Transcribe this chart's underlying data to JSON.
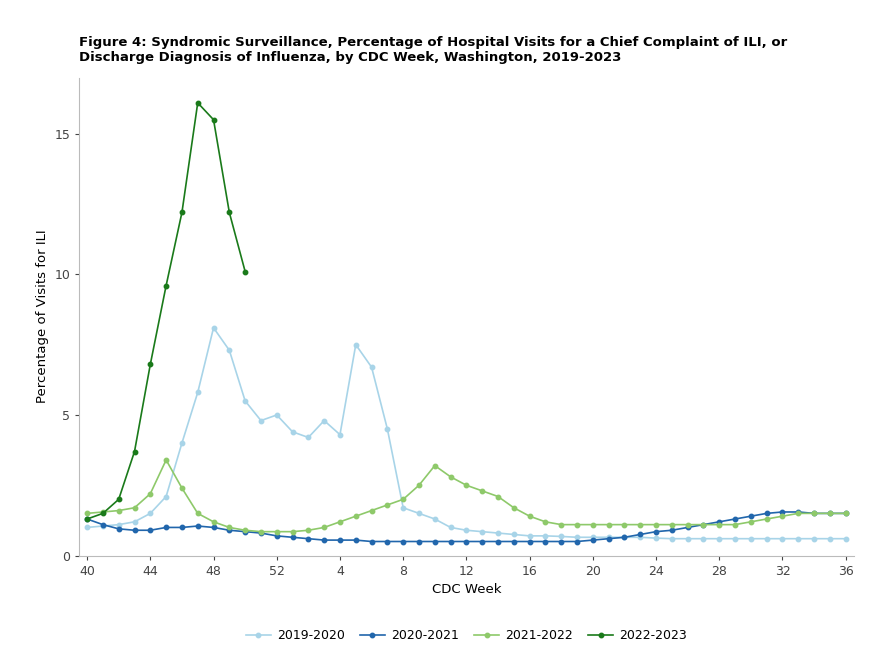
{
  "title_line1": "Figure 4: Syndromic Surveillance, Percentage of Hospital Visits for a Chief Complaint of ILI, or",
  "title_line2": "Discharge Diagnosis of Influenza, by CDC Week, Washington, 2019-2023",
  "xlabel": "CDC Week",
  "ylabel": "Percentage of Visits for ILI",
  "background_color": "#ffffff",
  "title_fontsize": 9.5,
  "axis_label_fontsize": 9.5,
  "tick_fontsize": 9,
  "legend_fontsize": 9,
  "xtick_positions": [
    0,
    4,
    8,
    12,
    16,
    20,
    24,
    28,
    32,
    36,
    40,
    44,
    48
  ],
  "xtick_labels": [
    "40",
    "44",
    "48",
    "52",
    "4",
    "8",
    "12",
    "16",
    "20",
    "24",
    "28",
    "32",
    "36"
  ],
  "series": [
    {
      "label": "2019-2020",
      "color": "#a8d4e8",
      "x": [
        0,
        1,
        2,
        3,
        4,
        5,
        6,
        7,
        8,
        9,
        10,
        11,
        12,
        13,
        14,
        15,
        16,
        17,
        18,
        19,
        20,
        21,
        22,
        23,
        24,
        25,
        26,
        27,
        28,
        29,
        30,
        31,
        32,
        33,
        34,
        35,
        36,
        37,
        38,
        39,
        40,
        41,
        42,
        43,
        44,
        45,
        46,
        47,
        48
      ],
      "y": [
        1.0,
        1.05,
        1.1,
        1.2,
        1.5,
        2.1,
        4.0,
        5.8,
        8.1,
        7.3,
        5.5,
        4.8,
        5.0,
        4.4,
        4.2,
        4.8,
        4.3,
        7.5,
        6.7,
        4.5,
        1.7,
        1.5,
        1.3,
        1.0,
        0.9,
        0.85,
        0.8,
        0.75,
        0.7,
        0.7,
        0.68,
        0.65,
        0.65,
        0.65,
        0.65,
        0.65,
        0.62,
        0.6,
        0.6,
        0.6,
        0.6,
        0.6,
        0.6,
        0.6,
        0.6,
        0.6,
        0.6,
        0.6,
        0.6
      ]
    },
    {
      "label": "2020-2021",
      "color": "#2166ac",
      "x": [
        0,
        1,
        2,
        3,
        4,
        5,
        6,
        7,
        8,
        9,
        10,
        11,
        12,
        13,
        14,
        15,
        16,
        17,
        18,
        19,
        20,
        21,
        22,
        23,
        24,
        25,
        26,
        27,
        28,
        29,
        30,
        31,
        32,
        33,
        34,
        35,
        36,
        37,
        38,
        39,
        40,
        41,
        42,
        43,
        44,
        45,
        46,
        47,
        48
      ],
      "y": [
        1.3,
        1.1,
        0.95,
        0.9,
        0.9,
        1.0,
        1.0,
        1.05,
        1.0,
        0.9,
        0.85,
        0.8,
        0.7,
        0.65,
        0.6,
        0.55,
        0.55,
        0.55,
        0.5,
        0.5,
        0.5,
        0.5,
        0.5,
        0.5,
        0.5,
        0.5,
        0.5,
        0.5,
        0.5,
        0.5,
        0.5,
        0.5,
        0.55,
        0.6,
        0.65,
        0.75,
        0.85,
        0.9,
        1.0,
        1.1,
        1.2,
        1.3,
        1.4,
        1.5,
        1.55,
        1.55,
        1.5,
        1.5,
        1.5
      ]
    },
    {
      "label": "2021-2022",
      "color": "#8ec96a",
      "x": [
        0,
        1,
        2,
        3,
        4,
        5,
        6,
        7,
        8,
        9,
        10,
        11,
        12,
        13,
        14,
        15,
        16,
        17,
        18,
        19,
        20,
        21,
        22,
        23,
        24,
        25,
        26,
        27,
        28,
        29,
        30,
        31,
        32,
        33,
        34,
        35,
        36,
        37,
        38,
        39,
        40,
        41,
        42,
        43,
        44,
        45,
        46,
        47,
        48
      ],
      "y": [
        1.5,
        1.55,
        1.6,
        1.7,
        2.2,
        3.4,
        2.4,
        1.5,
        1.2,
        1.0,
        0.9,
        0.85,
        0.85,
        0.85,
        0.9,
        1.0,
        1.2,
        1.4,
        1.6,
        1.8,
        2.0,
        2.5,
        3.2,
        2.8,
        2.5,
        2.3,
        2.1,
        1.7,
        1.4,
        1.2,
        1.1,
        1.1,
        1.1,
        1.1,
        1.1,
        1.1,
        1.1,
        1.1,
        1.1,
        1.1,
        1.1,
        1.1,
        1.2,
        1.3,
        1.4,
        1.5,
        1.5,
        1.5,
        1.5
      ]
    },
    {
      "label": "2022-2023",
      "color": "#1a7a1a",
      "x": [
        0,
        1,
        2,
        3,
        4,
        5,
        6,
        7,
        8,
        9,
        10
      ],
      "y": [
        1.3,
        1.5,
        2.0,
        3.7,
        6.8,
        9.6,
        12.2,
        16.1,
        15.5,
        12.2,
        10.1
      ]
    }
  ]
}
